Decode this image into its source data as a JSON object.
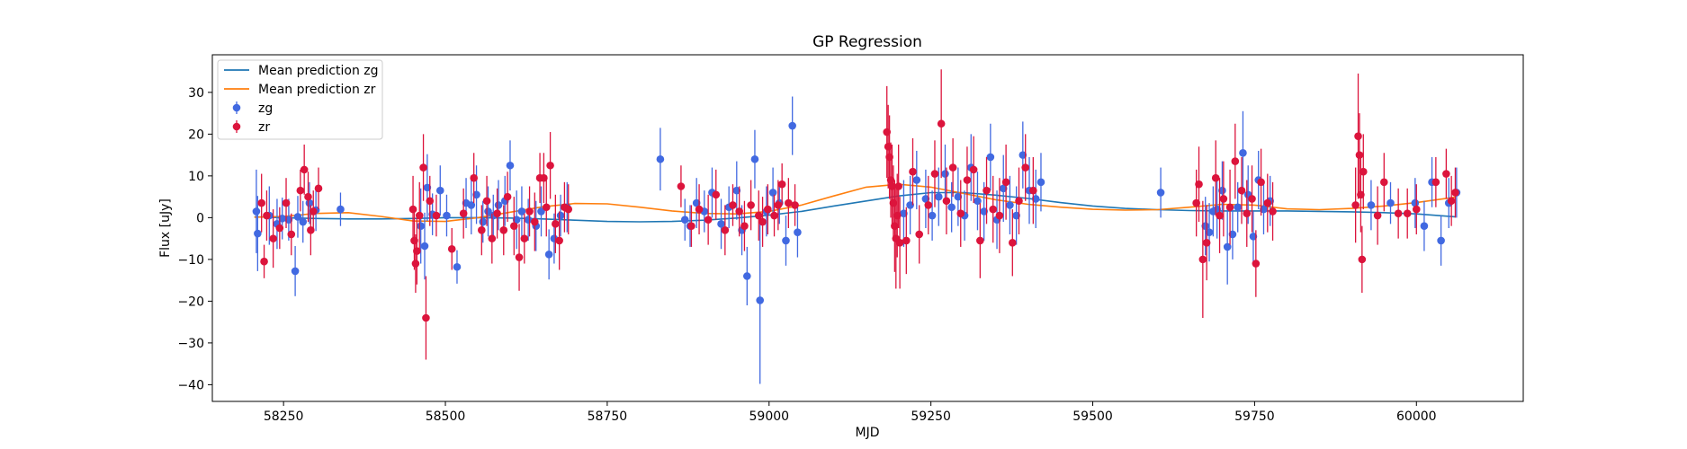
{
  "chart_data": {
    "type": "scatter",
    "title": "GP Regression",
    "xlabel": "MJD",
    "ylabel": "Flux [uJy]",
    "xlim": [
      58140,
      60165
    ],
    "ylim": [
      -44,
      39
    ],
    "x_ticks": [
      58250,
      58500,
      58750,
      59000,
      59250,
      59500,
      59750,
      60000
    ],
    "x_tick_labels": [
      "58250",
      "58500",
      "58750",
      "59000",
      "59250",
      "59500",
      "59750",
      "60000"
    ],
    "y_ticks": [
      -40,
      -30,
      -20,
      -10,
      0,
      10,
      20,
      30
    ],
    "y_tick_labels": [
      "−40",
      "−30",
      "−20",
      "−10",
      "0",
      "10",
      "20",
      "30"
    ],
    "grid": false,
    "legend_position": "top-left",
    "legend": [
      {
        "label": "Mean prediction zg",
        "kind": "line",
        "color": "#1f77b4"
      },
      {
        "label": "Mean prediction zr",
        "kind": "line",
        "color": "#ff7f0e"
      },
      {
        "label": "zg",
        "kind": "errorbar",
        "color": "#4169e1"
      },
      {
        "label": "zr",
        "kind": "errorbar",
        "color": "#dc143c"
      }
    ],
    "series": [
      {
        "name": "Mean prediction zg",
        "kind": "line",
        "color": "#1f77b4",
        "x": [
          58205,
          58250,
          58300,
          58350,
          58400,
          58450,
          58500,
          58550,
          58600,
          58650,
          58700,
          58750,
          58800,
          58850,
          58900,
          58950,
          59000,
          59050,
          59100,
          59150,
          59200,
          59250,
          59300,
          59350,
          59400,
          59450,
          59500,
          59550,
          59600,
          59650,
          59700,
          59750,
          59800,
          59850,
          59900,
          59950,
          60000,
          60060
        ],
        "y": [
          0.2,
          0.0,
          -0.2,
          -0.3,
          -0.3,
          -0.2,
          0.0,
          0.0,
          -0.1,
          -0.3,
          -0.6,
          -0.9,
          -1.0,
          -0.9,
          -0.6,
          -0.1,
          0.6,
          1.5,
          2.8,
          4.0,
          5.2,
          6.0,
          6.0,
          5.4,
          4.6,
          3.6,
          2.8,
          2.2,
          1.9,
          1.7,
          1.6,
          1.6,
          1.6,
          1.5,
          1.4,
          1.2,
          0.9,
          0.2
        ]
      },
      {
        "name": "Mean prediction zr",
        "kind": "line",
        "color": "#ff7f0e",
        "x": [
          58205,
          58250,
          58300,
          58350,
          58400,
          58450,
          58500,
          58550,
          58600,
          58650,
          58700,
          58750,
          58800,
          58850,
          58900,
          58950,
          59000,
          59050,
          59100,
          59150,
          59200,
          59250,
          59300,
          59350,
          59400,
          59450,
          59500,
          59550,
          59600,
          59650,
          59700,
          59750,
          59800,
          59850,
          59900,
          59950,
          60000,
          60060
        ],
        "y": [
          0.1,
          0.3,
          1.0,
          1.2,
          0.3,
          -0.8,
          -0.9,
          0.0,
          1.3,
          2.6,
          3.4,
          3.3,
          2.5,
          1.6,
          1.0,
          0.9,
          1.5,
          3.0,
          5.2,
          7.3,
          8.0,
          7.3,
          5.8,
          4.3,
          3.2,
          2.5,
          2.0,
          1.8,
          1.9,
          2.5,
          3.2,
          3.0,
          2.1,
          1.9,
          2.2,
          2.8,
          3.6,
          4.9
        ]
      },
      {
        "name": "zg",
        "kind": "errorbar",
        "color": "#4169e1",
        "x": [
          58208,
          58210,
          58228,
          58240,
          58248,
          58258,
          58268,
          58272,
          58280,
          58290,
          58300,
          58338,
          58462,
          58468,
          58472,
          58480,
          58492,
          58502,
          58518,
          58532,
          58540,
          58548,
          58558,
          58566,
          58574,
          58582,
          58592,
          58600,
          58610,
          58618,
          58628,
          58640,
          58648,
          58660,
          58668,
          58678,
          58688,
          58832,
          58870,
          58878,
          58888,
          58900,
          58912,
          58926,
          58938,
          58950,
          58958,
          58966,
          58978,
          58986,
          58996,
          59006,
          59016,
          59026,
          59036,
          59044,
          59208,
          59218,
          59228,
          59242,
          59252,
          59262,
          59272,
          59282,
          59292,
          59302,
          59312,
          59322,
          59332,
          59342,
          59352,
          59362,
          59372,
          59382,
          59392,
          59402,
          59412,
          59420,
          59605,
          59674,
          59680,
          59686,
          59692,
          59700,
          59708,
          59716,
          59724,
          59732,
          59740,
          59748,
          59756,
          59764,
          59774,
          59930,
          59960,
          59998,
          60012,
          60024,
          60038,
          60050,
          60062
        ],
        "y": [
          1.5,
          -3.8,
          0.5,
          -1.5,
          -0.2,
          -0.5,
          -12.8,
          0.2,
          -1.0,
          3.5,
          1.8,
          2.0,
          -2.0,
          -6.8,
          7.2,
          0.8,
          6.5,
          0.5,
          -11.8,
          3.5,
          3.0,
          5.5,
          -1.0,
          1.5,
          0.5,
          3.0,
          4.0,
          12.5,
          -0.5,
          1.5,
          -0.5,
          -2.0,
          1.5,
          -8.8,
          -5.0,
          0.5,
          2.5,
          14.0,
          -0.5,
          -2.0,
          3.5,
          1.5,
          6.0,
          -1.5,
          2.5,
          6.5,
          -3.0,
          -14.0,
          14.0,
          -19.8,
          1.5,
          6.0,
          3.5,
          -5.5,
          22.0,
          -3.5,
          1.0,
          3.0,
          9.0,
          4.5,
          0.5,
          5.0,
          10.5,
          2.5,
          5.0,
          0.5,
          12.0,
          4.0,
          1.5,
          14.5,
          -0.5,
          7.0,
          3.0,
          0.5,
          15.0,
          6.5,
          4.5,
          8.5,
          6.0,
          -2.0,
          -3.5,
          1.5,
          2.0,
          6.5,
          -7.0,
          -4.0,
          2.5,
          15.5,
          5.5,
          -4.5,
          9.0,
          2.0,
          4.0,
          3.0,
          3.5,
          3.5,
          -2.0,
          8.5,
          -5.5,
          3.5,
          6.0
        ],
        "err": [
          10,
          9,
          7,
          6,
          5,
          5,
          6,
          5,
          5,
          5,
          5,
          4,
          9,
          8,
          8,
          5,
          6,
          5,
          4,
          6,
          7,
          7,
          5,
          6,
          5,
          6,
          6,
          6,
          7,
          6,
          5,
          6,
          6,
          6,
          6,
          5,
          6,
          7.5,
          5,
          5,
          6,
          5,
          6,
          6,
          5,
          7,
          6,
          7,
          7,
          20,
          6,
          6,
          5,
          6,
          7,
          6,
          8,
          7,
          7,
          7,
          6,
          7,
          7,
          6,
          7,
          6,
          8,
          7,
          7,
          8,
          7,
          8,
          7,
          7,
          8,
          8,
          7,
          7,
          6,
          7,
          7,
          6,
          7,
          7,
          9,
          6,
          6,
          10,
          7,
          6,
          7,
          6,
          6,
          6,
          5,
          6,
          6,
          6,
          6,
          6,
          6
        ]
      },
      {
        "name": "zr",
        "kind": "errorbar",
        "color": "#dc143c",
        "x": [
          58216,
          58220,
          58224,
          58234,
          58244,
          58254,
          58262,
          58276,
          58282,
          58288,
          58292,
          58296,
          58304,
          58450,
          58452,
          58454,
          58456,
          58460,
          58466,
          58470,
          58476,
          58486,
          58510,
          58528,
          58544,
          58556,
          58564,
          58572,
          58580,
          58590,
          58596,
          58606,
          58614,
          58622,
          58630,
          58638,
          58646,
          58652,
          58656,
          58662,
          58670,
          58676,
          58684,
          58690,
          58864,
          58880,
          58892,
          58906,
          58918,
          58932,
          58944,
          58954,
          58962,
          58972,
          58984,
          58990,
          58998,
          59008,
          59014,
          59020,
          59030,
          59040,
          59182,
          59184,
          59186,
          59188,
          59190,
          59192,
          59194,
          59196,
          59198,
          59200,
          59202,
          59212,
          59222,
          59232,
          59246,
          59256,
          59266,
          59274,
          59284,
          59296,
          59306,
          59316,
          59326,
          59336,
          59346,
          59356,
          59366,
          59376,
          59386,
          59396,
          59408,
          59660,
          59664,
          59670,
          59676,
          59690,
          59696,
          59702,
          59712,
          59720,
          59730,
          59738,
          59746,
          59752,
          59760,
          59770,
          59778,
          59906,
          59910,
          59912,
          59914,
          59916,
          59918,
          59940,
          59950,
          59972,
          59986,
          60000,
          60030,
          60046,
          60054,
          60060
        ],
        "y": [
          3.5,
          -10.5,
          0.5,
          -5.0,
          -2.5,
          3.5,
          -4.0,
          6.5,
          11.5,
          5.0,
          -3.0,
          1.5,
          7.0,
          2.0,
          -5.5,
          -11.0,
          -8.0,
          0.5,
          12.0,
          -24.0,
          4.0,
          0.5,
          -7.5,
          1.0,
          9.5,
          -3.0,
          4.0,
          -5.0,
          1.0,
          -3.0,
          5.0,
          -2.0,
          -9.5,
          -5.0,
          1.5,
          -1.0,
          9.5,
          9.5,
          2.5,
          12.5,
          -1.5,
          -5.5,
          2.5,
          2.0,
          7.5,
          -2.0,
          2.0,
          -0.5,
          5.5,
          -3.0,
          3.0,
          1.5,
          -2.0,
          3.0,
          0.5,
          -1.0,
          2.0,
          0.5,
          3.0,
          8.0,
          3.5,
          3.0,
          20.5,
          17.0,
          14.5,
          9.0,
          7.5,
          3.5,
          -2.0,
          -5.0,
          0.5,
          7.5,
          -6.0,
          -5.5,
          11.0,
          -4.0,
          3.0,
          10.5,
          22.5,
          4.0,
          12.0,
          1.0,
          9.0,
          11.5,
          -5.5,
          6.5,
          2.0,
          0.5,
          8.5,
          -6.0,
          4.0,
          12.0,
          6.5,
          3.5,
          8.0,
          -10.0,
          -6.0,
          9.5,
          0.5,
          4.5,
          2.5,
          13.5,
          6.5,
          1.0,
          4.5,
          -11.0,
          8.5,
          3.5,
          1.5,
          3.0,
          19.5,
          15.0,
          5.5,
          -10.0,
          11.0,
          0.5,
          8.5,
          1.0,
          1.0,
          2.0,
          8.5,
          10.5,
          4.0,
          6.0
        ],
        "err": [
          7,
          4,
          6,
          7,
          5,
          6,
          5,
          5,
          6,
          6,
          6,
          5,
          5,
          8,
          7,
          7,
          8,
          8,
          8,
          10,
          6,
          5,
          5,
          6,
          6,
          6,
          6,
          6,
          6,
          6,
          6,
          7,
          8,
          6,
          6,
          7,
          6,
          6,
          7,
          8,
          7,
          7,
          6,
          6,
          5,
          5,
          6,
          6,
          6,
          6,
          5,
          6,
          6,
          6,
          6,
          6,
          6,
          5,
          6,
          5,
          6,
          5,
          11,
          10,
          10,
          9,
          10,
          9,
          11,
          12,
          10,
          10,
          11,
          8,
          8,
          7,
          7,
          8,
          13,
          8,
          7,
          8,
          8,
          8,
          9,
          8,
          8,
          9,
          9,
          8,
          8,
          8,
          8,
          8,
          9,
          14,
          9,
          9,
          9,
          9,
          9,
          9,
          8,
          8,
          8,
          8,
          8,
          7,
          7,
          9,
          15,
          10,
          9,
          8,
          9,
          7,
          7,
          6,
          6,
          6,
          6,
          6,
          6,
          6
        ]
      }
    ]
  }
}
